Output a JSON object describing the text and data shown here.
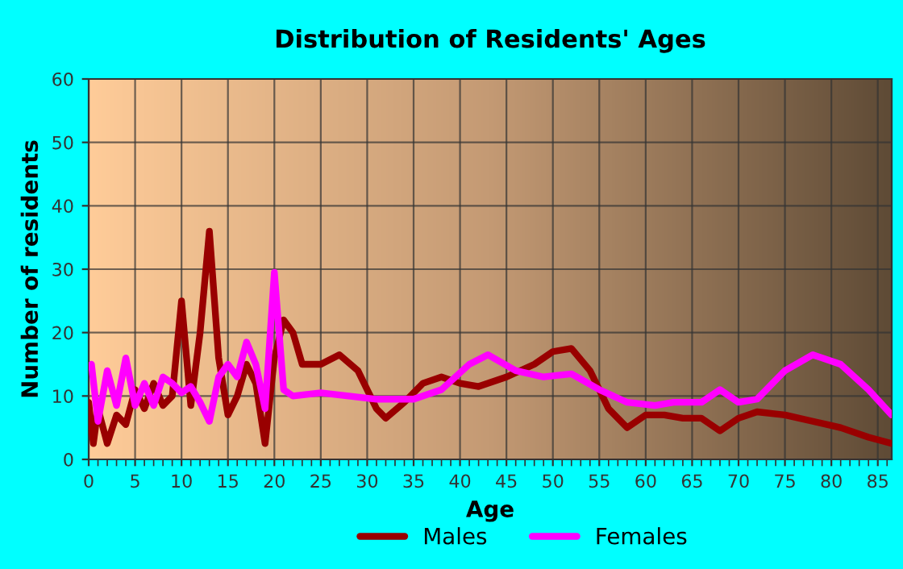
{
  "chart_data": {
    "type": "line",
    "title": "Distribution of Residents' Ages",
    "xlabel": "Age",
    "ylabel": "Number of residents",
    "xlim": [
      0,
      86.5
    ],
    "xticks": [
      0,
      5,
      10,
      15,
      20,
      25,
      30,
      35,
      40,
      45,
      50,
      55,
      60,
      65,
      70,
      75,
      80,
      85
    ],
    "ylim": [
      0,
      60
    ],
    "yticks": [
      0,
      10,
      20,
      30,
      40,
      50,
      60
    ],
    "grid": true,
    "legend": "bottom",
    "series": [
      {
        "name": "Males",
        "color": "#990000",
        "x": [
          0,
          0.5,
          1,
          2,
          3,
          4,
          5,
          6,
          7,
          8,
          9,
          10,
          11,
          12,
          13,
          14,
          15,
          16,
          17,
          18,
          19,
          20,
          21,
          22,
          23,
          25,
          27,
          29,
          31,
          32,
          34,
          36,
          38,
          40,
          42,
          45,
          48,
          50,
          52,
          54,
          56,
          58,
          60,
          62,
          64,
          66,
          68,
          70,
          72,
          75,
          78,
          81,
          84,
          86.5
        ],
        "values": [
          9,
          2.5,
          8,
          2.5,
          7,
          5.5,
          11,
          8,
          12,
          8.5,
          10,
          25,
          8.5,
          20,
          36,
          16,
          7,
          10,
          15,
          12,
          2.5,
          16,
          22,
          20,
          15,
          15,
          16.5,
          14,
          8,
          6.5,
          9,
          12,
          13,
          12,
          11.5,
          13,
          15,
          17,
          17.5,
          14,
          8,
          5,
          7,
          7,
          6.5,
          6.5,
          4.5,
          6.5,
          7.5,
          7,
          6,
          5,
          3.5,
          2.5
        ]
      },
      {
        "name": "Females",
        "color": "#ff00ff",
        "x": [
          0.3,
          1,
          2,
          3,
          4,
          5,
          6,
          7,
          8,
          9,
          10,
          11,
          12,
          13,
          14,
          15,
          16,
          17,
          18,
          19,
          20,
          21,
          22,
          25,
          28,
          31,
          35,
          38,
          41,
          43,
          46,
          49,
          52,
          55,
          58,
          61,
          63,
          66,
          68,
          70,
          72,
          75,
          78,
          81,
          84,
          86.5
        ],
        "values": [
          15,
          6,
          14,
          8.5,
          16,
          8.5,
          12,
          8.5,
          13,
          12,
          10.5,
          11.5,
          9,
          6,
          13,
          15,
          13,
          18.5,
          15,
          8,
          29.5,
          11,
          10,
          10.5,
          10,
          9.5,
          9.5,
          11,
          15,
          16.5,
          14,
          13,
          13.5,
          11,
          9,
          8.5,
          9,
          9,
          11,
          9,
          9.5,
          14,
          16.5,
          15,
          11,
          7
        ]
      }
    ]
  }
}
